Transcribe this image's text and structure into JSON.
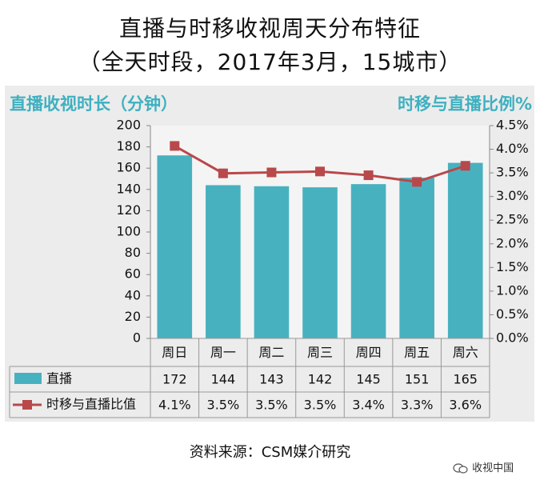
{
  "chart_data": {
    "type": "bar",
    "title": "直播与时移收视周天分布特征",
    "subtitle": "（全天时段，2017年3月，15城市）",
    "ylabel": "直播收视时长（分钟）",
    "y2label": "时移与直播比例%",
    "categories": [
      "周日",
      "周一",
      "周二",
      "周三",
      "周四",
      "周五",
      "周六"
    ],
    "ylim": [
      0,
      200
    ],
    "y_ticks": [
      "0",
      "20",
      "40",
      "60",
      "80",
      "100",
      "120",
      "140",
      "160",
      "180",
      "200"
    ],
    "y2lim": [
      0,
      4.5
    ],
    "y2_ticks": [
      "0.0%",
      "0.5%",
      "1.0%",
      "1.5%",
      "2.0%",
      "2.5%",
      "3.0%",
      "3.5%",
      "4.0%",
      "4.5%"
    ],
    "series": [
      {
        "name": "直播",
        "type": "bar",
        "axis": "left",
        "color": "#48b1bf",
        "values": [
          172,
          144,
          143,
          142,
          145,
          151,
          165
        ],
        "labels": [
          "172",
          "144",
          "143",
          "142",
          "145",
          "151",
          "165"
        ]
      },
      {
        "name": "时移与直播比值",
        "type": "line",
        "axis": "right",
        "color": "#b9484a",
        "values": [
          4.1,
          3.5,
          3.5,
          3.5,
          3.4,
          3.3,
          3.6
        ],
        "plot_values": [
          4.07,
          3.49,
          3.51,
          3.53,
          3.45,
          3.31,
          3.65
        ],
        "labels": [
          "4.1%",
          "3.5%",
          "3.5%",
          "3.5%",
          "3.4%",
          "3.3%",
          "3.6%"
        ]
      }
    ]
  },
  "source": "资料来源：CSM媒介研究",
  "watermark": "收视中国"
}
